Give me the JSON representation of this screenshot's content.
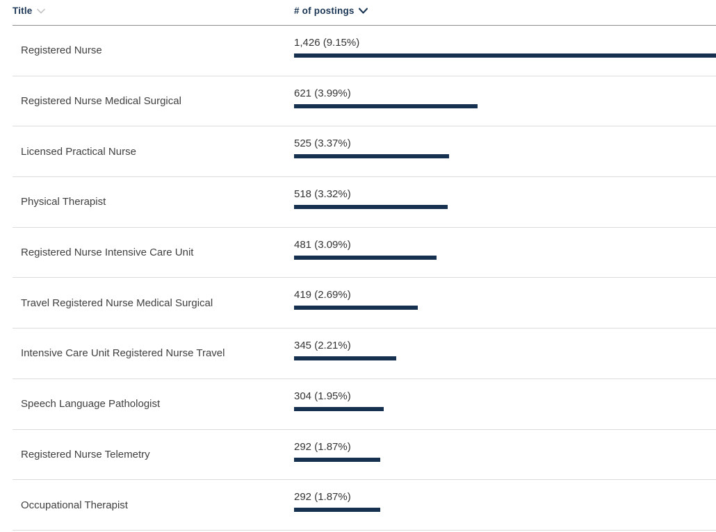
{
  "table": {
    "columns": [
      {
        "label": "Title",
        "sort_icon": "chevron-down-icon",
        "sort_active": false
      },
      {
        "label": "# of postings",
        "sort_icon": "chevron-down-icon",
        "sort_active": true
      }
    ],
    "max_postings": 1426,
    "rows": [
      {
        "title": "Registered Nurse",
        "postings": 1426,
        "value_label": "1,426 (9.15%)",
        "percent": 9.15
      },
      {
        "title": "Registered Nurse Medical Surgical",
        "postings": 621,
        "value_label": "621 (3.99%)",
        "percent": 3.99
      },
      {
        "title": "Licensed Practical Nurse",
        "postings": 525,
        "value_label": "525 (3.37%)",
        "percent": 3.37
      },
      {
        "title": "Physical Therapist",
        "postings": 518,
        "value_label": "518 (3.32%)",
        "percent": 3.32
      },
      {
        "title": "Registered Nurse Intensive Care Unit",
        "postings": 481,
        "value_label": "481 (3.09%)",
        "percent": 3.09
      },
      {
        "title": "Travel Registered Nurse Medical Surgical",
        "postings": 419,
        "value_label": "419 (2.69%)",
        "percent": 2.69
      },
      {
        "title": "Intensive Care Unit Registered Nurse Travel",
        "postings": 345,
        "value_label": "345 (2.21%)",
        "percent": 2.21
      },
      {
        "title": "Speech Language Pathologist",
        "postings": 304,
        "value_label": "304 (1.95%)",
        "percent": 1.95
      },
      {
        "title": "Registered Nurse Telemetry",
        "postings": 292,
        "value_label": "292 (1.87%)",
        "percent": 1.87
      },
      {
        "title": "Occupational Therapist",
        "postings": 292,
        "value_label": "292 (1.87%)",
        "percent": 1.87
      }
    ]
  },
  "colors": {
    "bar": "#16304f",
    "header_text": "#1b3554",
    "row_text": "#3f3f3f",
    "value_text": "#333333",
    "header_border": "#8c8c8c",
    "row_border": "#dcdcdc",
    "inactive_sort_icon": "#c4c4c4",
    "active_sort_icon": "#1b3554"
  },
  "chart_data": {
    "type": "bar",
    "orientation": "horizontal",
    "title": "",
    "xlabel": "# of postings",
    "ylabel": "Title",
    "xlim": [
      0,
      1426
    ],
    "grid": false,
    "legend": false,
    "sorted_by": "# of postings descending",
    "categories": [
      "Registered Nurse",
      "Registered Nurse Medical Surgical",
      "Licensed Practical Nurse",
      "Physical Therapist",
      "Registered Nurse Intensive Care Unit",
      "Travel Registered Nurse Medical Surgical",
      "Intensive Care Unit Registered Nurse Travel",
      "Speech Language Pathologist",
      "Registered Nurse Telemetry",
      "Occupational Therapist"
    ],
    "values": [
      1426,
      621,
      525,
      518,
      481,
      419,
      345,
      304,
      292,
      292
    ],
    "percent_of_total": [
      9.15,
      3.99,
      3.37,
      3.32,
      3.09,
      2.69,
      2.21,
      1.95,
      1.87,
      1.87
    ],
    "data_labels": [
      "1,426 (9.15%)",
      "621 (3.99%)",
      "525 (3.37%)",
      "518 (3.32%)",
      "481 (3.09%)",
      "419 (2.69%)",
      "345 (2.21%)",
      "304 (1.95%)",
      "292 (1.87%)",
      "292 (1.87%)"
    ]
  }
}
